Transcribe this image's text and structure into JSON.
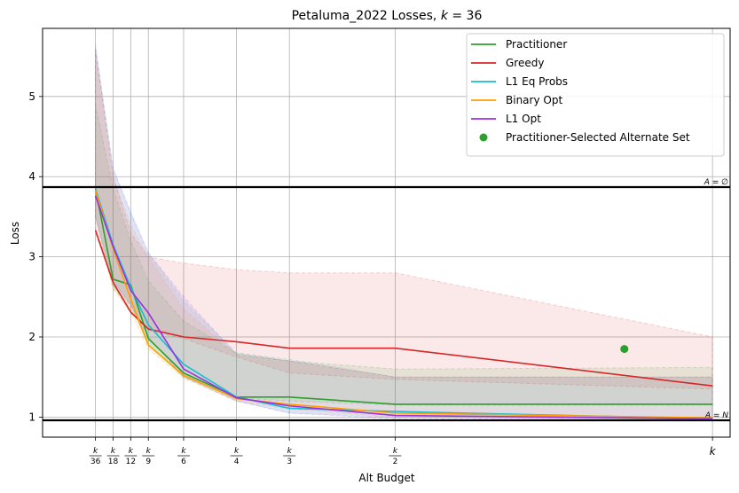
{
  "chart_data": {
    "type": "line",
    "title": "Petaluma_2022 Losses, k = 36",
    "title_parts": {
      "prefix": "Petaluma_2022 Losses, ",
      "k": "k",
      "eq": " = 36"
    },
    "xlabel": "Alt Budget",
    "ylabel": "Loss",
    "k": 36,
    "xlim": [
      -2,
      37
    ],
    "ylim": [
      0.75,
      5.85
    ],
    "grid": true,
    "legend_position": "top-right",
    "x_ticks": [
      {
        "x": 1,
        "num": "k",
        "den": "36"
      },
      {
        "x": 2,
        "num": "k",
        "den": "18"
      },
      {
        "x": 3,
        "num": "k",
        "den": "12"
      },
      {
        "x": 4,
        "num": "k",
        "den": "9"
      },
      {
        "x": 6,
        "num": "k",
        "den": "6"
      },
      {
        "x": 9,
        "num": "k",
        "den": "4"
      },
      {
        "x": 12,
        "num": "k",
        "den": "3"
      },
      {
        "x": 18,
        "num": "k",
        "den": "2"
      },
      {
        "x": 36,
        "num": "k",
        "den": ""
      }
    ],
    "y_ticks": [
      1,
      2,
      3,
      4,
      5
    ],
    "x": [
      1,
      2,
      3,
      4,
      6,
      9,
      12,
      18,
      36
    ],
    "series": [
      {
        "name": "Practitioner",
        "color": "#2ca02c",
        "values": [
          3.85,
          2.72,
          2.65,
          1.98,
          1.55,
          1.25,
          1.25,
          1.16,
          1.16
        ],
        "band_upper": [
          4.9,
          3.85,
          3.2,
          2.7,
          2.2,
          1.8,
          1.7,
          1.6,
          1.62
        ],
        "band_lower": [
          3.5,
          2.6,
          2.4,
          1.9,
          1.5,
          1.24,
          1.2,
          1.15,
          1.15
        ]
      },
      {
        "name": "Greedy",
        "color": "#d62728",
        "values": [
          3.33,
          2.68,
          2.31,
          2.1,
          2.0,
          1.94,
          1.86,
          1.86,
          1.39
        ],
        "band_upper": [
          5.6,
          4.0,
          3.3,
          3.0,
          2.92,
          2.84,
          2.8,
          2.8,
          2.0
        ],
        "band_lower": [
          3.3,
          2.65,
          2.3,
          2.08,
          1.98,
          1.75,
          1.55,
          1.47,
          1.35
        ]
      },
      {
        "name": "L1 Eq Probs",
        "color": "#17becf",
        "values": [
          3.85,
          3.15,
          2.62,
          2.15,
          1.66,
          1.25,
          1.11,
          1.07,
          0.98
        ],
        "band_upper": [
          5.65,
          4.1,
          3.55,
          3.05,
          2.45,
          1.8,
          1.72,
          1.5,
          1.5
        ],
        "band_lower": [
          3.5,
          2.7,
          2.4,
          1.9,
          1.5,
          1.2,
          1.05,
          1.0,
          0.97
        ]
      },
      {
        "name": "Binary Opt",
        "color": "#ff9f00",
        "values": [
          3.83,
          3.1,
          2.47,
          1.9,
          1.52,
          1.23,
          1.16,
          1.05,
          0.99
        ],
        "band_upper": [
          5.5,
          4.0,
          3.4,
          3.0,
          2.35,
          1.78,
          1.7,
          1.5,
          1.5
        ],
        "band_lower": [
          3.5,
          2.6,
          2.3,
          1.85,
          1.48,
          1.2,
          1.1,
          1.0,
          0.97
        ]
      },
      {
        "name": "L1 Opt",
        "color": "#9b30e0",
        "values": [
          3.76,
          3.13,
          2.58,
          2.3,
          1.6,
          1.24,
          1.14,
          1.02,
          0.98
        ],
        "band_upper": [
          5.6,
          4.1,
          3.55,
          3.05,
          2.5,
          1.78,
          1.7,
          1.5,
          1.5
        ],
        "band_lower": [
          3.5,
          2.7,
          2.4,
          2.0,
          1.5,
          1.2,
          1.05,
          0.98,
          0.96
        ]
      }
    ],
    "scatter": {
      "name": "Practitioner-Selected Alternate Set",
      "color": "#2ca02c",
      "x": 31,
      "y": 1.85
    },
    "hlines": [
      {
        "y": 3.87,
        "label": "A = ∅"
      },
      {
        "y": 0.96,
        "label": "A = N"
      }
    ]
  }
}
